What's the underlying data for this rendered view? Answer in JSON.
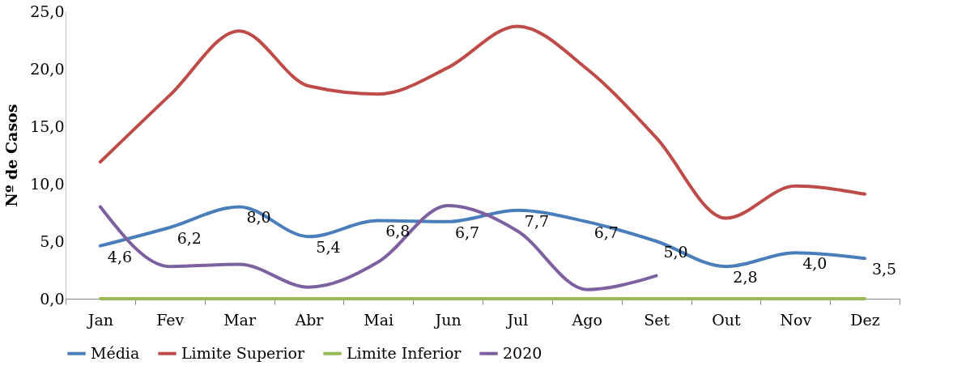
{
  "chart_data": {
    "type": "line",
    "ylabel": "Nº de Casos",
    "categories": [
      "Jan",
      "Fev",
      "Mar",
      "Abr",
      "Mai",
      "Jun",
      "Jul",
      "Ago",
      "Set",
      "Out",
      "Nov",
      "Dez"
    ],
    "series": [
      {
        "name": "Média",
        "color": "#4a7ebb",
        "values": [
          4.6,
          6.2,
          8.0,
          5.4,
          6.8,
          6.7,
          7.7,
          6.7,
          5.0,
          2.8,
          4.0,
          3.5
        ],
        "value_labels": [
          "4,6",
          "6,2",
          "8,0",
          "5,4",
          "6,8",
          "6,7",
          "7,7",
          "6,7",
          "5,0",
          "2,8",
          "4,0",
          "3,5"
        ]
      },
      {
        "name": "Limite Superior",
        "color": "#be4b48",
        "values": [
          11.9,
          17.7,
          23.3,
          18.5,
          17.8,
          20.1,
          23.7,
          20.0,
          14.0,
          7.0,
          9.8,
          9.1
        ]
      },
      {
        "name": "Limite Inferior",
        "color": "#98b954",
        "values": [
          0,
          0,
          0,
          0,
          0,
          0,
          0,
          0,
          0,
          0,
          0,
          0
        ]
      },
      {
        "name": "2020",
        "color": "#7d60a0",
        "values": [
          8.0,
          2.8,
          3.0,
          1.0,
          3.2,
          8.1,
          5.9,
          0.8,
          2.0,
          null,
          null,
          null
        ]
      }
    ],
    "ylim": [
      0,
      25
    ],
    "yticks": [
      {
        "value": 0,
        "label": "0,0"
      },
      {
        "value": 5,
        "label": "5,0"
      },
      {
        "value": 10,
        "label": "10,0"
      },
      {
        "value": 15,
        "label": "15,0"
      },
      {
        "value": 20,
        "label": "20,0"
      },
      {
        "value": 25,
        "label": "25,0"
      }
    ],
    "grid": false,
    "legend": "bottom",
    "marker": "none",
    "line_style": "solid"
  }
}
